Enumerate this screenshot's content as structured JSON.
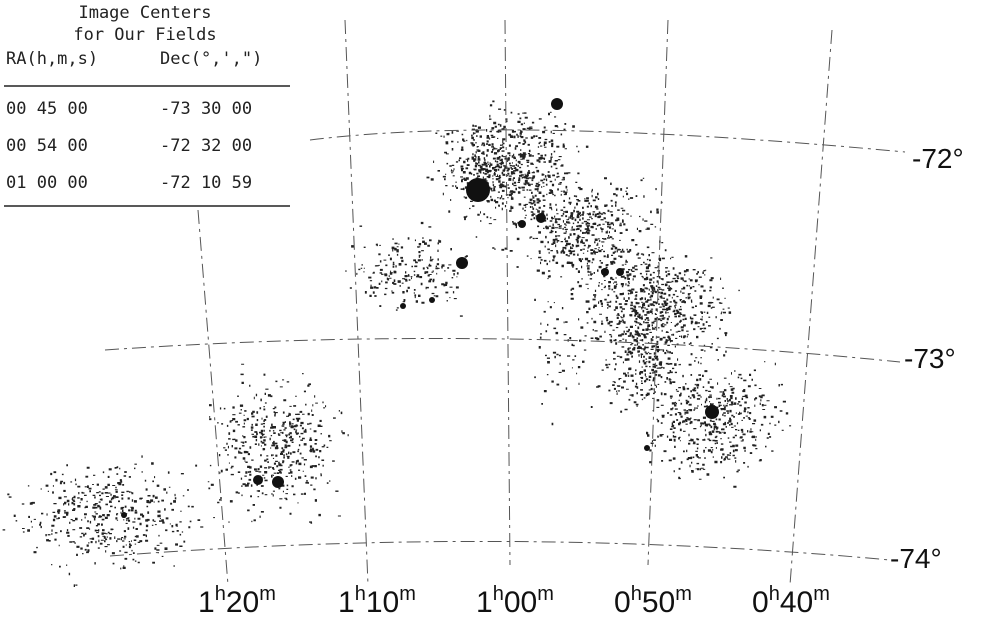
{
  "table": {
    "title": [
      "Image Centers",
      "for Our Fields"
    ],
    "headers": [
      "RA(h,m,s)",
      "Dec(°,',\")"
    ],
    "rows": [
      [
        "00 45 00",
        "-73 30 00"
      ],
      [
        "00 54 00",
        "-72 32 00"
      ],
      [
        "01 00 00",
        "-72 10 59"
      ]
    ]
  },
  "dec_labels": [
    "-72°",
    "-73°",
    "-74°"
  ],
  "ra_labels": [
    [
      "1",
      "h",
      "20",
      "m"
    ],
    [
      "1",
      "h",
      "10",
      "m"
    ],
    [
      "1",
      "h",
      "00",
      "m"
    ],
    [
      "0",
      "h",
      "50",
      "m"
    ],
    [
      "0",
      "h",
      "40",
      "m"
    ]
  ]
}
